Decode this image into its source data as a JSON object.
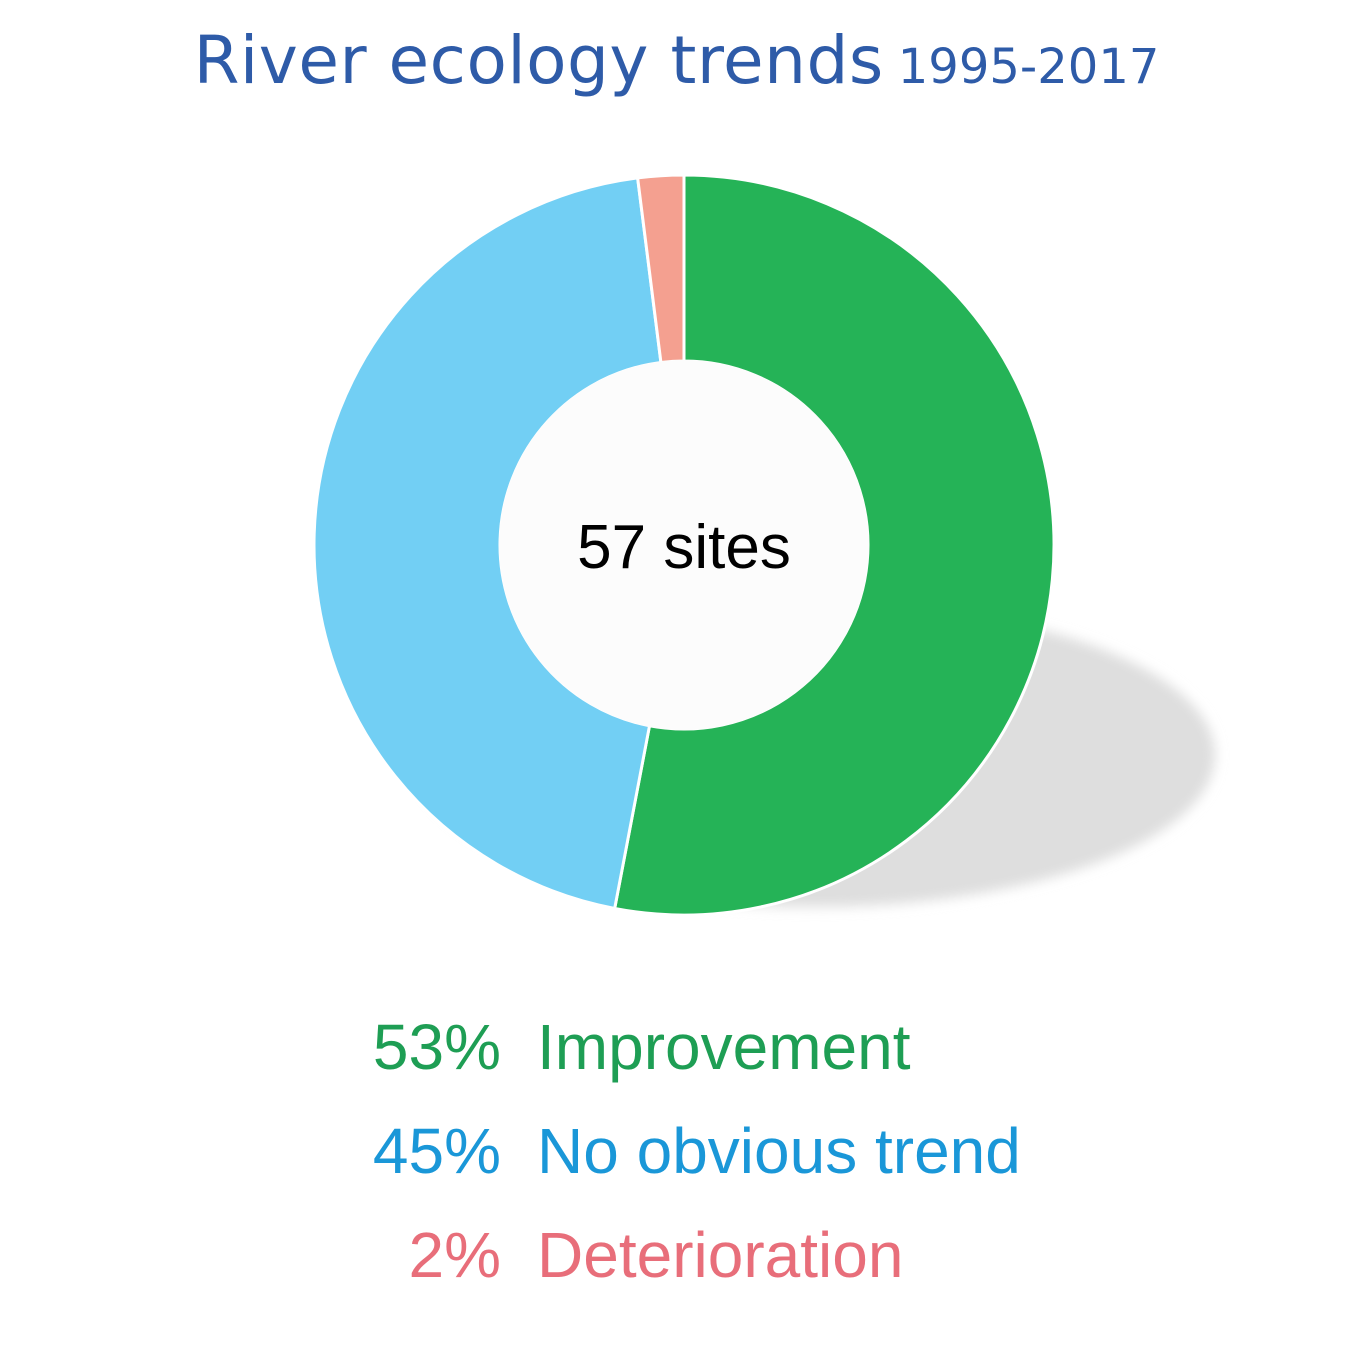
{
  "title": "River ecology trends",
  "subtitle": "1995-2017",
  "center_label": "57 sites",
  "colors": {
    "title": "#2e5ba8",
    "improvement": "#25b357",
    "no_trend": "#72cff4",
    "deterioration": "#f4a090",
    "improvement_text": "#1e9e54",
    "no_trend_text": "#1a97d8",
    "deterioration_text": "#e86e7a",
    "shadow": "#e0e0e0",
    "hole": "#fcfcfc"
  },
  "chart_data": {
    "type": "pie",
    "variant": "donut",
    "center_text": "57 sites",
    "slices": [
      {
        "label": "Improvement",
        "value": 53,
        "display": "53%",
        "color": "#25b357",
        "text_color": "#1e9e54"
      },
      {
        "label": "No obvious trend",
        "value": 45,
        "display": "45%",
        "color": "#72cff4",
        "text_color": "#1a97d8"
      },
      {
        "label": "Deterioration",
        "value": 2,
        "display": "2%",
        "color": "#f4a090",
        "text_color": "#e86e7a"
      }
    ],
    "legend_position": "bottom"
  }
}
